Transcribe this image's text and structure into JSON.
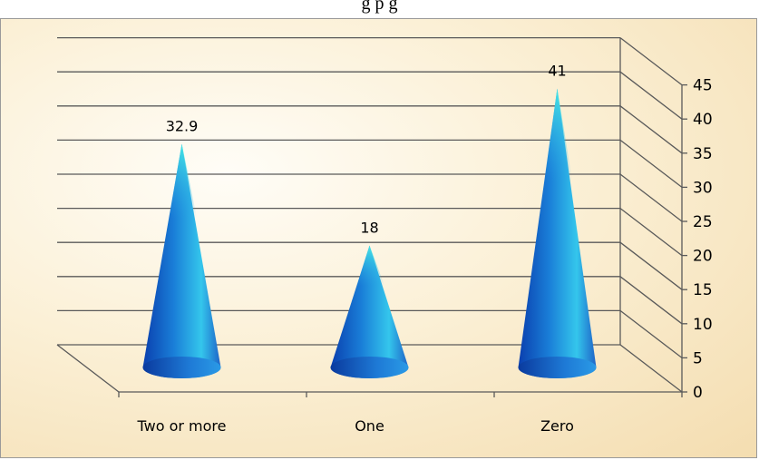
{
  "header": {
    "title_partial": "g                                            p        g"
  },
  "chart_data": {
    "type": "cone",
    "categories": [
      "Two or more",
      "One",
      "Zero"
    ],
    "values": [
      32.9,
      18,
      41
    ],
    "data_labels": [
      "32.9",
      "18",
      "41"
    ],
    "ylim": [
      0,
      45
    ],
    "yticks": [
      "0",
      "5",
      "10",
      "15",
      "20",
      "25",
      "30",
      "35",
      "40",
      "45"
    ],
    "grid": true,
    "legend": "none",
    "colors": {
      "cone_dark": "#0a3fae",
      "cone_mid": "#1e8fe0",
      "cone_light": "#3fe6e6",
      "grid": "#5a5a5a"
    }
  }
}
